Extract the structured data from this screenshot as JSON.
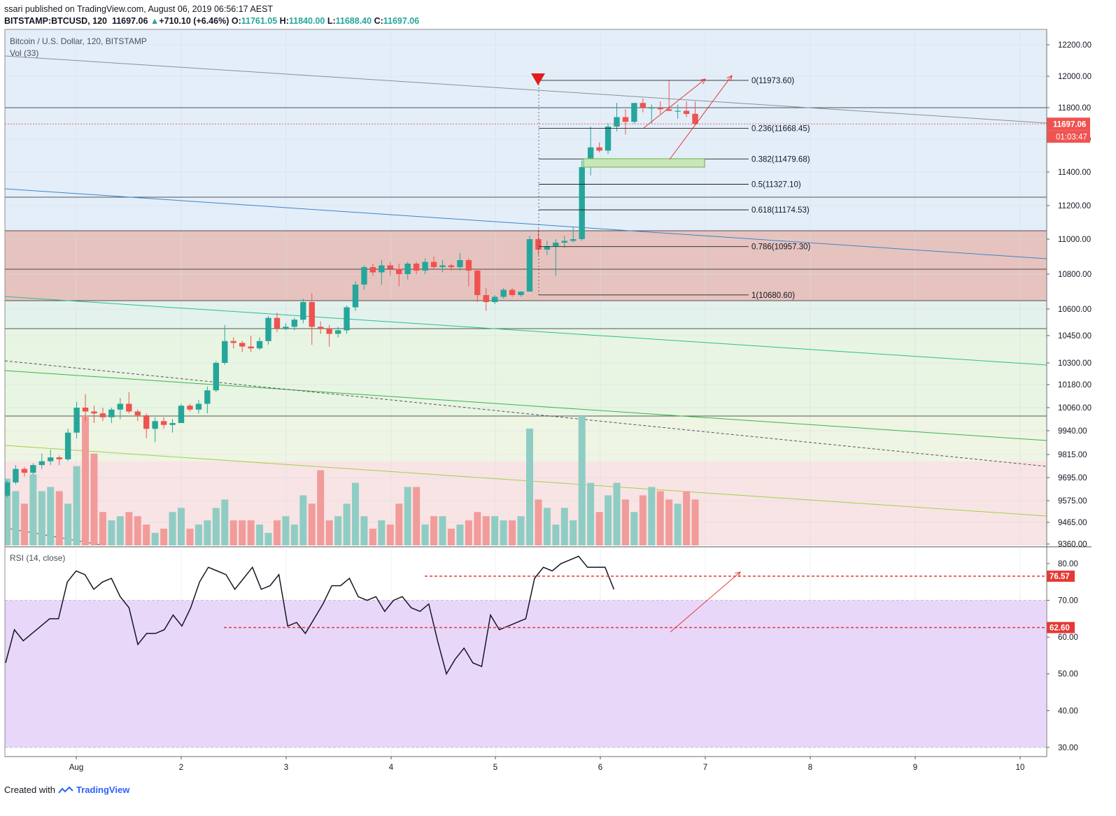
{
  "header": {
    "publisher_line": "ssari published on TradingView.com, August 06, 2019 06:56:17 AEST",
    "symbol": "BITSTAMP:BTCUSD, 120",
    "last": "11697.06",
    "change": "+710.10 (+6.46%)",
    "open_label": "O:",
    "open": "11761.05",
    "high_label": "H:",
    "high": "11840.00",
    "low_label": "L:",
    "low": "11688.40",
    "close_label": "C:",
    "close": "11697.06"
  },
  "footer": {
    "created_with": "Created with",
    "brand": "TradingView"
  },
  "colors": {
    "up": "#26a69a",
    "down": "#ef5350",
    "rsi_band": "#e9d7fa",
    "fib_red": "#e06666",
    "annotation_red": "#e53935"
  },
  "chart_data": [
    {
      "type": "candlestick",
      "title": "Bitcoin / U.S. Dollar, 120, BITSTAMP",
      "volume_label": "Vol (33)",
      "x_ticks": [
        "Aug",
        "2",
        "3",
        "4",
        "5",
        "6",
        "7",
        "8",
        "9",
        "10"
      ],
      "y_ticks": [
        "12200.00",
        "12000.00",
        "11800.00",
        "11600.00",
        "11400.00",
        "11200.00",
        "11000.00",
        "10800.00",
        "10600.00",
        "10450.00",
        "10300.00",
        "10180.00",
        "10060.00",
        "9940.00",
        "9815.00",
        "9695.00",
        "9575.00",
        "9465.00",
        "9360.00"
      ],
      "price_label": "11697.06",
      "countdown_label": "01:03:47",
      "ohlc": [
        [
          9600,
          9680,
          9590,
          9670
        ],
        [
          9670,
          9760,
          9660,
          9740
        ],
        [
          9740,
          9750,
          9700,
          9720
        ],
        [
          9720,
          9770,
          9710,
          9760
        ],
        [
          9760,
          9820,
          9740,
          9780
        ],
        [
          9780,
          9840,
          9760,
          9800
        ],
        [
          9800,
          9810,
          9760,
          9790
        ],
        [
          9790,
          9950,
          9780,
          9930
        ],
        [
          9930,
          10090,
          9900,
          10060
        ],
        [
          10060,
          10130,
          9990,
          10040
        ],
        [
          10040,
          10070,
          9980,
          10030
        ],
        [
          10030,
          10060,
          9990,
          10010
        ],
        [
          10010,
          10060,
          9980,
          10050
        ],
        [
          10050,
          10110,
          10000,
          10080
        ],
        [
          10080,
          10140,
          10030,
          10040
        ],
        [
          10040,
          10050,
          9990,
          10020
        ],
        [
          10020,
          10030,
          9900,
          9950
        ],
        [
          9950,
          10010,
          9880,
          9990
        ],
        [
          9990,
          10010,
          9950,
          9970
        ],
        [
          9970,
          10000,
          9930,
          9980
        ],
        [
          9980,
          10080,
          9980,
          10070
        ],
        [
          10070,
          10080,
          10040,
          10050
        ],
        [
          10050,
          10100,
          10030,
          10080
        ],
        [
          10080,
          10170,
          10030,
          10150
        ],
        [
          10150,
          10310,
          10140,
          10300
        ],
        [
          10300,
          10510,
          10290,
          10420
        ],
        [
          10420,
          10440,
          10380,
          10410
        ],
        [
          10410,
          10420,
          10360,
          10390
        ],
        [
          10390,
          10450,
          10360,
          10380
        ],
        [
          10380,
          10440,
          10370,
          10420
        ],
        [
          10420,
          10560,
          10400,
          10550
        ],
        [
          10550,
          10580,
          10470,
          10490
        ],
        [
          10490,
          10520,
          10480,
          10500
        ],
        [
          10500,
          10550,
          10480,
          10540
        ],
        [
          10540,
          10660,
          10520,
          10640
        ],
        [
          10640,
          10690,
          10400,
          10500
        ],
        [
          10500,
          10530,
          10460,
          10490
        ],
        [
          10490,
          10510,
          10390,
          10460
        ],
        [
          10460,
          10500,
          10440,
          10480
        ],
        [
          10480,
          10620,
          10460,
          10610
        ],
        [
          10610,
          10760,
          10590,
          10740
        ],
        [
          10740,
          10850,
          10710,
          10840
        ],
        [
          10840,
          10860,
          10790,
          10810
        ],
        [
          10810,
          10880,
          10740,
          10850
        ],
        [
          10850,
          10870,
          10790,
          10830
        ],
        [
          10830,
          10860,
          10730,
          10800
        ],
        [
          10800,
          10870,
          10770,
          10860
        ],
        [
          10860,
          10870,
          10800,
          10820
        ],
        [
          10820,
          10890,
          10800,
          10870
        ],
        [
          10870,
          10900,
          10830,
          10840
        ],
        [
          10840,
          10880,
          10810,
          10850
        ],
        [
          10850,
          10860,
          10820,
          10840
        ],
        [
          10840,
          10920,
          10820,
          10880
        ],
        [
          10880,
          10890,
          10730,
          10820
        ],
        [
          10820,
          10830,
          10640,
          10680
        ],
        [
          10680,
          10720,
          10590,
          10640
        ],
        [
          10640,
          10680,
          10630,
          10670
        ],
        [
          10670,
          10720,
          10660,
          10710
        ],
        [
          10710,
          10720,
          10670,
          10680
        ],
        [
          10680,
          10690,
          10670,
          10700
        ],
        [
          10700,
          11020,
          10700,
          11000
        ],
        [
          11000,
          11060,
          10910,
          10940
        ],
        [
          10940,
          10990,
          10910,
          10960
        ],
        [
          10960,
          11000,
          10790,
          10980
        ],
        [
          10980,
          11020,
          10950,
          10990
        ],
        [
          10990,
          11070,
          10980,
          11000
        ],
        [
          11000,
          11470,
          10990,
          11430
        ],
        [
          11430,
          11680,
          11380,
          11550
        ],
        [
          11550,
          11580,
          11520,
          11530
        ],
        [
          11530,
          11700,
          11510,
          11680
        ],
        [
          11680,
          11830,
          11650,
          11740
        ],
        [
          11740,
          11790,
          11630,
          11710
        ],
        [
          11710,
          11830,
          11700,
          11830
        ],
        [
          11830,
          11860,
          11770,
          11800
        ],
        [
          11800,
          11820,
          11700,
          11800
        ],
        [
          11800,
          11840,
          11760,
          11790
        ],
        [
          11790,
          11973,
          11780,
          11780
        ],
        [
          11780,
          11820,
          11730,
          11780
        ],
        [
          11780,
          11840,
          11740,
          11760
        ],
        [
          11761,
          11840,
          11688,
          11697
        ]
      ],
      "volume": [
        16,
        13,
        10,
        17,
        13,
        14,
        13,
        10,
        19,
        31,
        22,
        8,
        6,
        7,
        8,
        7,
        5,
        3,
        4,
        8,
        9,
        4,
        5,
        6,
        9,
        11,
        6,
        6,
        6,
        5,
        3,
        6,
        7,
        5,
        12,
        10,
        18,
        6,
        7,
        10,
        15,
        7,
        4,
        6,
        5,
        10,
        14,
        14,
        5,
        7,
        7,
        4,
        5,
        6,
        8,
        7,
        7,
        6,
        6,
        7,
        28,
        11,
        9,
        5,
        9,
        6,
        31,
        15,
        8,
        12,
        15,
        11,
        8,
        12,
        14,
        13,
        11,
        10,
        13,
        11
      ],
      "fibonacci": [
        {
          "label": "0(11973.60)",
          "level": 11973.6
        },
        {
          "label": "0.236(11668.45)",
          "level": 11668.45
        },
        {
          "label": "0.382(11479.68)",
          "level": 11479.68
        },
        {
          "label": "0.5(11327.10)",
          "level": 11327.1
        },
        {
          "label": "0.618(11174.53)",
          "level": 11174.53
        },
        {
          "label": "0.786(10957.30)",
          "level": 10957.3
        },
        {
          "label": "1(10680.60)",
          "level": 10680.6
        }
      ]
    },
    {
      "type": "line",
      "title": "RSI (14, close)",
      "y_ticks": [
        "80.00",
        "70.00",
        "60.00",
        "50.00",
        "40.00",
        "30.00"
      ],
      "ylim": [
        27.5,
        84
      ],
      "levels": [
        {
          "label": "76.57",
          "value": 76.57
        },
        {
          "label": "62.60",
          "value": 62.6
        }
      ],
      "values": [
        53,
        62,
        59,
        61,
        63,
        65,
        65,
        75,
        78,
        77,
        73,
        75,
        76,
        71,
        68,
        58,
        61,
        61,
        62,
        66,
        63,
        68,
        75,
        79,
        78,
        77,
        73,
        76,
        79,
        73,
        74,
        77,
        63,
        64,
        61,
        65,
        69,
        74,
        74,
        76,
        71,
        70,
        71,
        67,
        70,
        71,
        68,
        67,
        69,
        59,
        50,
        54,
        57,
        53,
        52,
        66,
        62,
        63,
        64,
        65,
        76,
        79,
        78,
        80,
        81,
        82,
        79,
        79,
        79,
        73
      ]
    }
  ]
}
